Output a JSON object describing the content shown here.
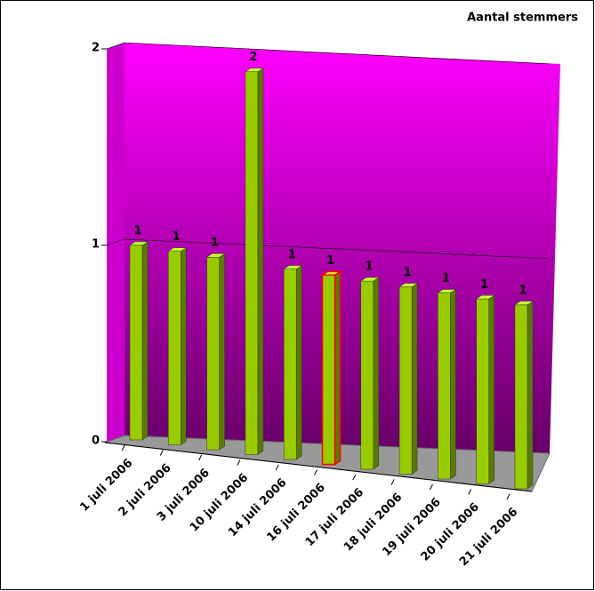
{
  "chart_data": {
    "type": "bar3d",
    "title": "Aantal stemmers",
    "categories": [
      "1 juli 2006",
      "2 juli 2006",
      "3 juli 2006",
      "10 juli 2006",
      "14 juli 2006",
      "16 juli 2006",
      "17 juli 2006",
      "18 juli 2006",
      "19 juli 2006",
      "20 juli 2006",
      "21 juli 2006"
    ],
    "values": [
      1,
      1,
      1,
      2,
      1,
      1,
      1,
      1,
      1,
      1,
      1
    ],
    "color": "#99cc00",
    "highlight": {
      "index": 5,
      "edge_color": "#ff0000"
    },
    "wall_color": [
      "#ff00ff",
      "#660066"
    ],
    "ylim": [
      0,
      2
    ],
    "yticks": [
      0,
      1,
      2
    ],
    "grid": true
  }
}
